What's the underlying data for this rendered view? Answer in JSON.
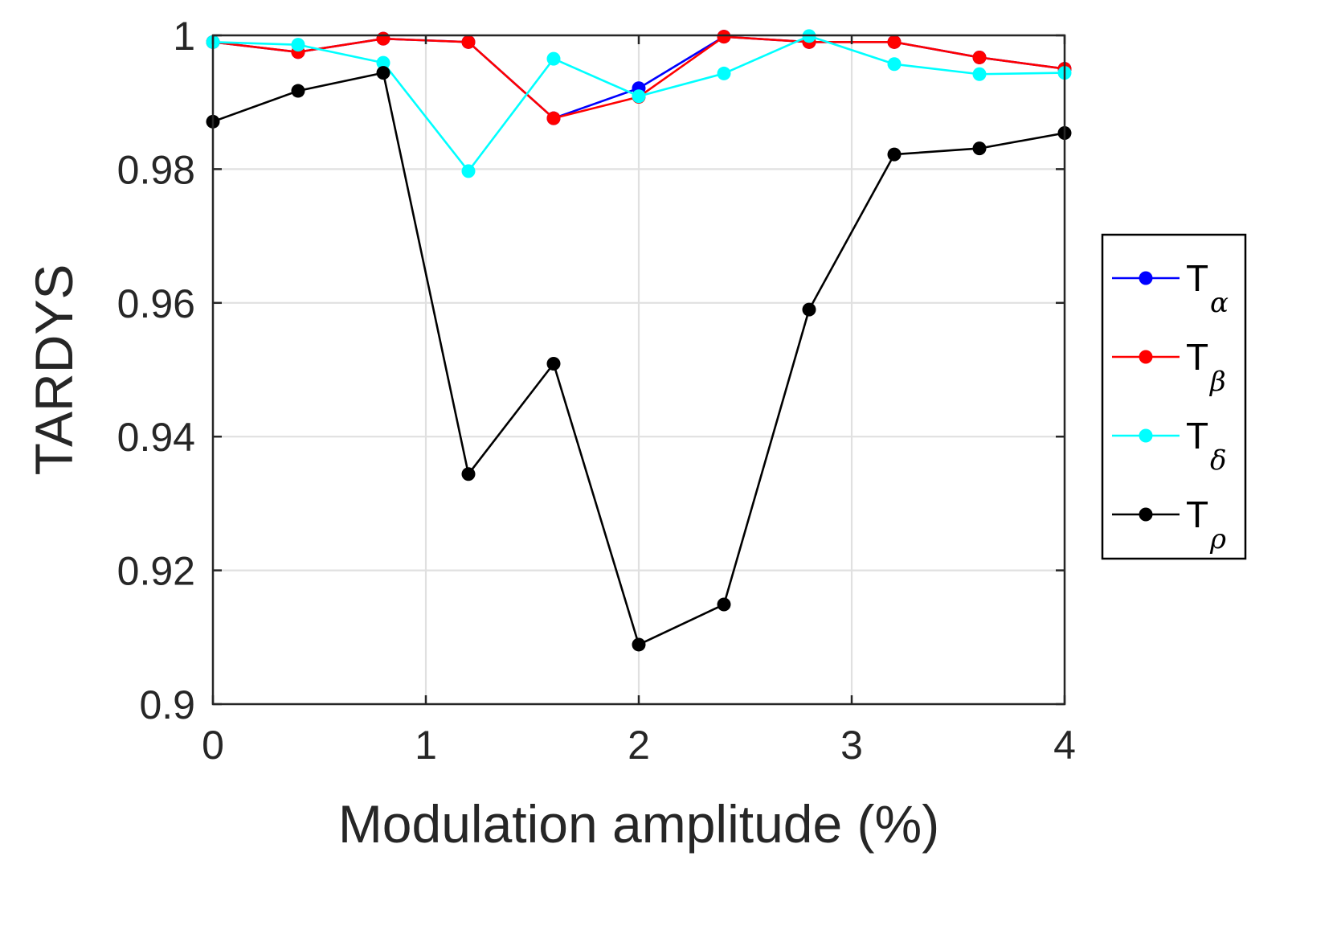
{
  "chart_data": {
    "type": "line",
    "title": "",
    "xlabel": "Modulation amplitude (%)",
    "ylabel": "TARDYS",
    "xlim": [
      0,
      4
    ],
    "ylim": [
      0.9,
      1.0
    ],
    "xticks": [
      0,
      1,
      2,
      3,
      4
    ],
    "xtick_labels": [
      "0",
      "1",
      "2",
      "3",
      "4"
    ],
    "yticks": [
      0.9,
      0.92,
      0.94,
      0.96,
      0.98,
      1.0
    ],
    "ytick_labels": [
      "0.9",
      "0.92",
      "0.94",
      "0.96",
      "0.98",
      "1"
    ],
    "grid": true,
    "legend_position": "outside-right",
    "x": [
      0,
      0.4,
      0.8,
      1.2,
      1.6,
      2.0,
      2.4,
      2.8,
      3.2,
      3.6,
      4.0
    ],
    "series": [
      {
        "name": "T",
        "subscript": "α",
        "color": "#0000ff",
        "values": [
          0.999,
          0.9975,
          0.9995,
          0.999,
          0.9876,
          0.9921,
          0.9998,
          0.999,
          0.999,
          0.9967,
          0.995
        ]
      },
      {
        "name": "T",
        "subscript": "β",
        "color": "#ff0000",
        "values": [
          0.999,
          0.9975,
          0.9995,
          0.999,
          0.9876,
          0.9908,
          0.9998,
          0.999,
          0.999,
          0.9967,
          0.995
        ]
      },
      {
        "name": "T",
        "subscript": "δ",
        "color": "#00ffff",
        "values": [
          0.999,
          0.9986,
          0.9959,
          0.9797,
          0.9965,
          0.9909,
          0.9943,
          0.9999,
          0.9957,
          0.9942,
          0.9944
        ]
      },
      {
        "name": "T",
        "subscript": "ρ",
        "color": "#000000",
        "values": [
          0.9871,
          0.9917,
          0.9944,
          0.9344,
          0.9509,
          0.9089,
          0.9149,
          0.959,
          0.9822,
          0.9831,
          0.9854
        ]
      }
    ]
  }
}
